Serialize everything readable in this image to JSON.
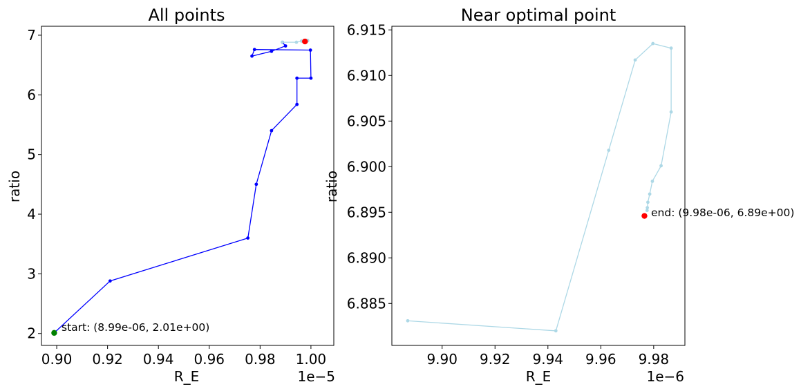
{
  "chart_data": [
    {
      "type": "line",
      "title": "All points",
      "xlabel": "R_E",
      "ylabel": "ratio",
      "x_offset_label": "1e−5",
      "xlim": [
        8.94e-06,
        1.009e-05
      ],
      "ylim": [
        1.8,
        7.15
      ],
      "xticks": [
        9e-06,
        9.2e-06,
        9.4e-06,
        9.6e-06,
        9.8e-06,
        1e-05
      ],
      "xtick_labels": [
        "0.90",
        "0.92",
        "0.94",
        "0.96",
        "0.98",
        "1.00"
      ],
      "yticks": [
        2,
        3,
        4,
        5,
        6,
        7
      ],
      "ytick_labels": [
        "2",
        "3",
        "4",
        "5",
        "6",
        "7"
      ],
      "grid": false,
      "series": [
        {
          "color": "#0000ff",
          "points": [
            [
              8.99e-06,
              2.01
            ],
            [
              9.21e-06,
              2.88
            ],
            [
              9.752e-06,
              3.6
            ],
            [
              9.785e-06,
              4.5
            ],
            [
              9.845e-06,
              5.4
            ],
            [
              9.945e-06,
              5.84
            ],
            [
              9.945e-06,
              6.28
            ],
            [
              1e-05,
              6.28
            ],
            [
              9.998e-06,
              6.75
            ],
            [
              9.778e-06,
              6.76
            ],
            [
              9.768e-06,
              6.65
            ],
            [
              9.845e-06,
              6.73
            ],
            [
              9.9e-06,
              6.82
            ],
            [
              9.888e-06,
              6.88
            ]
          ]
        },
        {
          "color": "#add8e6",
          "points": [
            [
              9.887e-06,
              6.883
            ],
            [
              9.943e-06,
              6.882
            ],
            [
              9.963e-06,
              6.902
            ],
            [
              9.973e-06,
              6.912
            ],
            [
              9.98e-06,
              6.9135
            ],
            [
              9.987e-06,
              6.913
            ],
            [
              9.987e-06,
              6.906
            ],
            [
              9.983e-06,
              6.9
            ],
            [
              9.98e-06,
              6.898
            ],
            [
              9.978e-06,
              6.896
            ],
            [
              9.977e-06,
              6.895
            ],
            [
              9.9765e-06,
              6.8945
            ]
          ]
        }
      ],
      "markers": [
        {
          "label": "start",
          "x": 8.99e-06,
          "y": 2.01,
          "color": "#008000"
        },
        {
          "label": "end",
          "x": 9.9765e-06,
          "y": 6.8945,
          "color": "#ff0000"
        }
      ],
      "annotations": [
        "start: (8.99e-06, 2.01e+00)"
      ]
    },
    {
      "type": "line",
      "title": "Near optimal point",
      "xlabel": "R_E",
      "ylabel": "ratio",
      "x_offset_label": "1e−6",
      "xlim": [
        9.881e-06,
        9.9918e-06
      ],
      "ylim": [
        6.8804,
        6.9154
      ],
      "xticks": [
        9.9e-06,
        9.92e-06,
        9.94e-06,
        9.96e-06,
        9.98e-06
      ],
      "xtick_labels": [
        "9.90",
        "9.92",
        "9.94",
        "9.96",
        "9.98"
      ],
      "yticks": [
        6.885,
        6.89,
        6.895,
        6.9,
        6.905,
        6.91,
        6.915
      ],
      "ytick_labels": [
        "6.885",
        "6.890",
        "6.895",
        "6.900",
        "6.905",
        "6.910",
        "6.915"
      ],
      "grid": false,
      "series": [
        {
          "color": "#add8e6",
          "points": [
            [
              9.887e-06,
              6.8831
            ],
            [
              9.943e-06,
              6.882
            ],
            [
              9.963e-06,
              6.9018
            ],
            [
              9.973e-06,
              6.9117
            ],
            [
              9.9797e-06,
              6.9135
            ],
            [
              9.9866e-06,
              6.913
            ],
            [
              9.9866e-06,
              6.906
            ],
            [
              9.9828e-06,
              6.9001
            ],
            [
              9.9795e-06,
              6.8984
            ],
            [
              9.9785e-06,
              6.897
            ],
            [
              9.9778e-06,
              6.8961
            ],
            [
              9.9776e-06,
              6.8955
            ],
            [
              9.9775e-06,
              6.8952
            ]
          ]
        }
      ],
      "markers": [
        {
          "label": "end",
          "x": 9.9765e-06,
          "y": 6.8946,
          "color": "#ff0000"
        }
      ],
      "annotations": [
        "end: (9.98e-06, 6.89e+00)"
      ]
    }
  ]
}
